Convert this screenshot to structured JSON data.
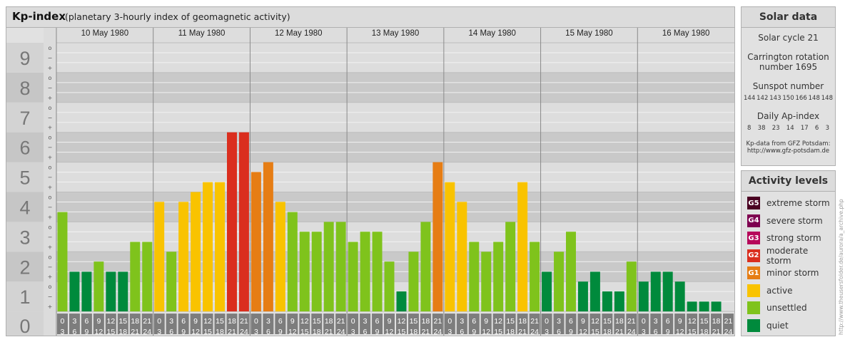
{
  "header": {
    "title": "Kp-index",
    "subtitle": "(planetary 3-hourly index of geomagnetic activity)"
  },
  "chart_data": {
    "type": "bar",
    "title": "Kp-index",
    "subtitle": "(planetary 3-hourly index of geomagnetic activity)",
    "ylim": [
      0,
      9
    ],
    "y_ticks": [
      "0",
      "1",
      "2",
      "3",
      "4",
      "5",
      "6",
      "7",
      "8",
      "9"
    ],
    "y_minor_ticks": [
      "o",
      "+",
      "−"
    ],
    "days": [
      "10 May 1980",
      "11 May 1980",
      "12 May 1980",
      "13 May 1980",
      "14 May 1980",
      "15 May 1980",
      "16 May 1980"
    ],
    "hour_labels": [
      [
        "0",
        "3"
      ],
      [
        "3",
        "6"
      ],
      [
        "6",
        "9"
      ],
      [
        "9",
        "12"
      ],
      [
        "12",
        "15"
      ],
      [
        "15",
        "18"
      ],
      [
        "18",
        "21"
      ],
      [
        "21",
        "24"
      ]
    ],
    "values": [
      [
        3.33,
        1.33,
        1.33,
        1.67,
        1.33,
        1.33,
        2.33,
        2.33
      ],
      [
        3.67,
        2.0,
        3.67,
        4.0,
        4.33,
        4.33,
        6.0,
        6.0
      ],
      [
        4.67,
        5.0,
        3.67,
        3.33,
        2.67,
        2.67,
        3.0,
        3.0
      ],
      [
        2.33,
        2.67,
        2.67,
        1.67,
        0.67,
        2.0,
        3.0,
        5.0
      ],
      [
        4.33,
        3.67,
        2.33,
        2.0,
        2.33,
        3.0,
        4.33,
        2.33
      ],
      [
        1.33,
        2.0,
        2.67,
        1.0,
        1.33,
        0.67,
        0.67,
        1.67
      ],
      [
        1.0,
        1.33,
        1.33,
        1.0,
        0.33,
        0.33,
        0.33,
        0.0
      ]
    ],
    "color_scale": [
      {
        "level": "quiet",
        "max": 1.5,
        "color": "#008a3c"
      },
      {
        "level": "unsettled",
        "max": 3.5,
        "color": "#7fc31c"
      },
      {
        "level": "active",
        "max": 4.5,
        "color": "#f9c300"
      },
      {
        "level": "minor storm",
        "max": 5.5,
        "color": "#e67d14"
      },
      {
        "level": "moderate storm",
        "max": 6.5,
        "color": "#da2e1e"
      },
      {
        "level": "strong storm",
        "max": 7.5,
        "color": "#b6085a"
      },
      {
        "level": "severe storm",
        "max": 8.5,
        "color": "#7e0050"
      },
      {
        "level": "extreme storm",
        "max": 9,
        "color": "#4a0022"
      }
    ]
  },
  "solar": {
    "title": "Solar data",
    "cycle": "Solar cycle 21",
    "carrington_1": "Carrington rotation",
    "carrington_2": "number 1695",
    "sunspot_title": "Sunspot number",
    "sunspot_values": [
      "144",
      "142",
      "143",
      "150",
      "166",
      "148",
      "148"
    ],
    "ap_title": "Daily Ap-index",
    "ap_values": [
      "8",
      "38",
      "23",
      "14",
      "17",
      "6",
      "3"
    ],
    "source_1": "Kp-data from GFZ Potsdam:",
    "source_2": "http://www.gfz-potsdam.de"
  },
  "activity": {
    "title": "Activity levels",
    "levels": [
      {
        "badge": "G5",
        "label": "extreme storm",
        "color": "#4a0022"
      },
      {
        "badge": "G4",
        "label": "severe storm",
        "color": "#7e0050"
      },
      {
        "badge": "G3",
        "label": "strong storm",
        "color": "#b6085a"
      },
      {
        "badge": "G2",
        "label": "moderate storm",
        "color": "#da2e1e"
      },
      {
        "badge": "G1",
        "label": "minor storm",
        "color": "#e67d14"
      },
      {
        "badge": "",
        "label": "active",
        "color": "#f9c300"
      },
      {
        "badge": "",
        "label": "unsettled",
        "color": "#7fc31c"
      },
      {
        "badge": "",
        "label": "quiet",
        "color": "#008a3c"
      }
    ]
  },
  "credit": "http://www.theusersfolder.de/aurora/a_archive.php"
}
